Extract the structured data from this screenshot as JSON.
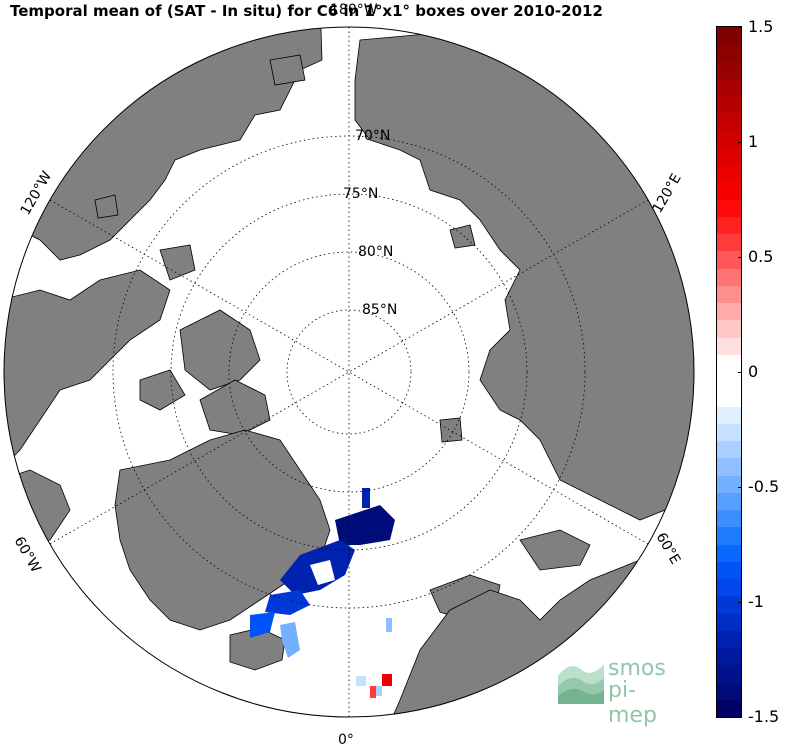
{
  "title": "Temporal mean of (SAT - In situ) for C6 in 1°x1° boxes over 2010-2012",
  "map": {
    "projection": "north-polar-stereographic",
    "center": "North Pole",
    "land_color": "#808080",
    "ocean_color": "#ffffff",
    "latitude_labels": [
      "70°N",
      "75°N",
      "80°N",
      "85°N"
    ],
    "longitude_labels": {
      "top": "180°W",
      "bottom": "0°",
      "upper_left": "120°W",
      "lower_left": "60°W",
      "upper_right": "120°E",
      "lower_right": "60°E"
    }
  },
  "colorbar": {
    "min": -1.5,
    "max": 1.5,
    "tick_labels": [
      "1.5",
      "1",
      "0.5",
      "0",
      "-0.5",
      "-1",
      "-1.5"
    ],
    "tick_values": [
      1.5,
      1,
      0.5,
      0,
      -0.5,
      -1,
      -1.5
    ],
    "colors_top_to_bottom": [
      "#7f0000",
      "#8c0000",
      "#990000",
      "#a80000",
      "#b50000",
      "#c40000",
      "#d10000",
      "#de0000",
      "#eb0000",
      "#f70000",
      "#ff0a0a",
      "#ff2020",
      "#ff3b3b",
      "#ff5858",
      "#ff7373",
      "#ff8f8f",
      "#ffabab",
      "#ffc6c6",
      "#ffe0e0",
      "#ffffff",
      "#ffffff",
      "#ffffff",
      "#e0eeff",
      "#c6e0ff",
      "#abd0ff",
      "#8fbfff",
      "#73b0ff",
      "#58a0ff",
      "#3b8eff",
      "#207cff",
      "#0a68ff",
      "#0054f7",
      "#0046e8",
      "#0039d6",
      "#002dc4",
      "#0022b0",
      "#00199e",
      "#00128c",
      "#000c7a",
      "#000066"
    ]
  },
  "logo": {
    "line1": "smos",
    "line2": "pi-mep",
    "color": "#8fc7a8"
  }
}
